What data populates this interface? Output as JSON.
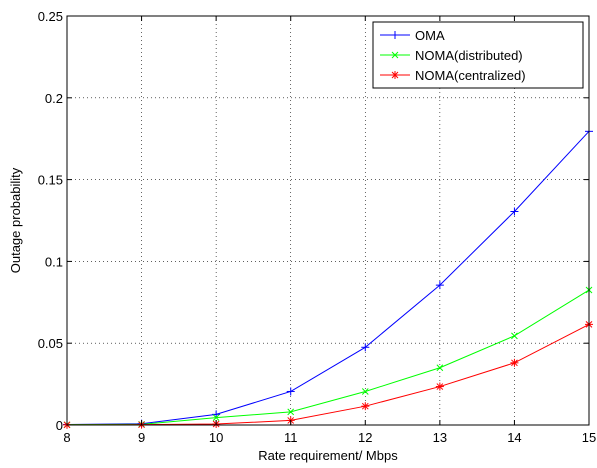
{
  "chart_data": {
    "type": "line",
    "title": "",
    "xlabel": "Rate requirement/ Mbps",
    "ylabel": "Outage probability",
    "xlim": [
      8,
      15
    ],
    "ylim": [
      0,
      0.25
    ],
    "x": [
      8,
      9,
      10,
      11,
      12,
      13,
      14,
      15
    ],
    "x_ticks": [
      "8",
      "9",
      "10",
      "11",
      "12",
      "13",
      "14",
      "15"
    ],
    "y_ticks_values": [
      0,
      0.05,
      0.1,
      0.15,
      0.2,
      0.25
    ],
    "y_ticks": [
      "0",
      "0.05",
      "0.1",
      "0.15",
      "0.2",
      "0.25"
    ],
    "grid": true,
    "legend_position": "top-right",
    "series": [
      {
        "name": "OMA",
        "color": "#0000ff",
        "marker": "plus",
        "values": [
          0.0003,
          0.0008,
          0.0065,
          0.0205,
          0.0475,
          0.0855,
          0.1305,
          0.1795
        ]
      },
      {
        "name": "NOMA(distributed)",
        "color": "#00ff00",
        "marker": "x",
        "values": [
          0.0002,
          0.0004,
          0.0045,
          0.008,
          0.0205,
          0.035,
          0.0545,
          0.0825
        ]
      },
      {
        "name": "NOMA(centralized)",
        "color": "#ff0000",
        "marker": "star",
        "values": [
          0.0001,
          0.0002,
          0.0006,
          0.0028,
          0.0115,
          0.0235,
          0.038,
          0.0615
        ]
      }
    ]
  }
}
